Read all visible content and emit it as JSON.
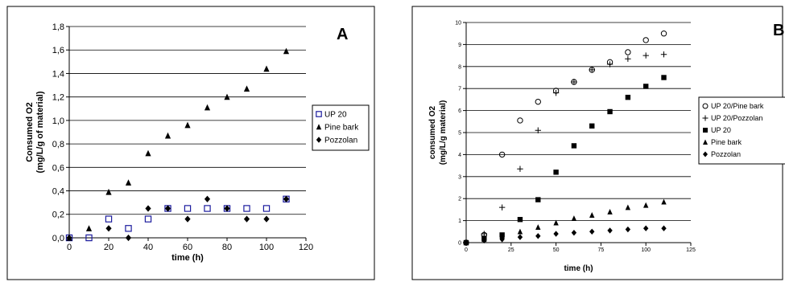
{
  "chart_data": [
    {
      "type": "scatter",
      "panel_label": "A",
      "xlabel": "time (h)",
      "ylabel_line1": "Consumed O2",
      "ylabel_line2": "(mg/L/g of material)",
      "xlim": [
        0,
        120
      ],
      "ylim": [
        0,
        1.8
      ],
      "x_ticks": [
        0,
        20,
        40,
        60,
        80,
        100,
        120
      ],
      "y_ticks": [
        0.0,
        0.2,
        0.4,
        0.6,
        0.8,
        1.0,
        1.2,
        1.4,
        1.6,
        1.8
      ],
      "x_tick_labels": [
        "0",
        "20",
        "40",
        "60",
        "80",
        "100",
        "120"
      ],
      "y_tick_labels": [
        "0,0",
        "0,2",
        "0,4",
        "0,6",
        "0,8",
        "1,0",
        "1,2",
        "1,4",
        "1,6",
        "1,8"
      ],
      "grid": "horizontal",
      "legend_position": "right",
      "series": [
        {
          "name": "UP 20",
          "marker": "square-open",
          "color": "#1c1c9e",
          "x": [
            0,
            10,
            20,
            30,
            40,
            50,
            60,
            70,
            80,
            90,
            100,
            110
          ],
          "y": [
            0,
            0,
            0.16,
            0.08,
            0.16,
            0.25,
            0.25,
            0.25,
            0.25,
            0.25,
            0.25,
            0.33
          ]
        },
        {
          "name": "Pine bark",
          "marker": "triangle",
          "color": "#000000",
          "x": [
            0,
            10,
            20,
            30,
            40,
            50,
            60,
            70,
            80,
            90,
            100,
            110
          ],
          "y": [
            0,
            0.08,
            0.39,
            0.47,
            0.72,
            0.87,
            0.96,
            1.11,
            1.2,
            1.27,
            1.44,
            1.59
          ]
        },
        {
          "name": "Pozzolan",
          "marker": "diamond",
          "color": "#000000",
          "x": [
            0,
            20,
            30,
            40,
            50,
            60,
            70,
            80,
            90,
            100,
            110
          ],
          "y": [
            0,
            0.08,
            0,
            0.25,
            0.25,
            0.16,
            0.33,
            0.25,
            0.16,
            0.16,
            0.33
          ]
        }
      ]
    },
    {
      "type": "scatter",
      "panel_label": "B",
      "xlabel": "time (h)",
      "ylabel_line1": "consumed O2",
      "ylabel_line2": "(mg/L/g material)",
      "xlim": [
        0,
        125
      ],
      "ylim": [
        0,
        10
      ],
      "x_ticks": [
        0,
        25,
        50,
        75,
        100,
        125
      ],
      "y_ticks": [
        0,
        1,
        2,
        3,
        4,
        5,
        6,
        7,
        8,
        9,
        10
      ],
      "x_tick_labels": [
        "0",
        "25",
        "50",
        "75",
        "100",
        "125"
      ],
      "y_tick_labels": [
        "0",
        "1",
        "2",
        "3",
        "4",
        "5",
        "6",
        "7",
        "8",
        "9",
        "10"
      ],
      "grid": "horizontal",
      "legend_position": "right",
      "series": [
        {
          "name": "UP 20/Pine bark",
          "marker": "circle-open",
          "color": "#000000",
          "x": [
            0,
            10,
            20,
            30,
            40,
            50,
            60,
            70,
            80,
            90,
            100,
            110
          ],
          "y": [
            0,
            0.35,
            4.0,
            5.55,
            6.4,
            6.9,
            7.3,
            7.85,
            8.2,
            8.65,
            9.2,
            9.5
          ]
        },
        {
          "name": "UP 20/Pozzolan",
          "marker": "plus",
          "color": "#000000",
          "x": [
            0,
            10,
            20,
            30,
            40,
            50,
            60,
            70,
            80,
            90,
            100,
            110
          ],
          "y": [
            0,
            0.4,
            1.6,
            3.35,
            5.1,
            6.8,
            7.3,
            7.85,
            8.1,
            8.35,
            8.5,
            8.55
          ]
        },
        {
          "name": "UP 20",
          "marker": "square",
          "color": "#000000",
          "x": [
            0,
            10,
            20,
            30,
            40,
            50,
            60,
            70,
            80,
            90,
            100,
            110
          ],
          "y": [
            0,
            0.2,
            0.35,
            1.05,
            1.95,
            3.2,
            4.4,
            5.3,
            5.95,
            6.6,
            7.1,
            7.5
          ]
        },
        {
          "name": "Pine bark",
          "marker": "triangle",
          "color": "#000000",
          "x": [
            0,
            10,
            20,
            30,
            40,
            50,
            60,
            70,
            80,
            90,
            100,
            110
          ],
          "y": [
            0,
            0.15,
            0.3,
            0.5,
            0.7,
            0.9,
            1.1,
            1.25,
            1.4,
            1.6,
            1.7,
            1.85
          ]
        },
        {
          "name": "Pozzolan",
          "marker": "diamond",
          "color": "#000000",
          "x": [
            0,
            10,
            20,
            30,
            40,
            50,
            60,
            70,
            80,
            90,
            100,
            110
          ],
          "y": [
            0,
            0.1,
            0.15,
            0.25,
            0.3,
            0.4,
            0.45,
            0.5,
            0.55,
            0.6,
            0.65,
            0.65
          ]
        }
      ]
    }
  ]
}
